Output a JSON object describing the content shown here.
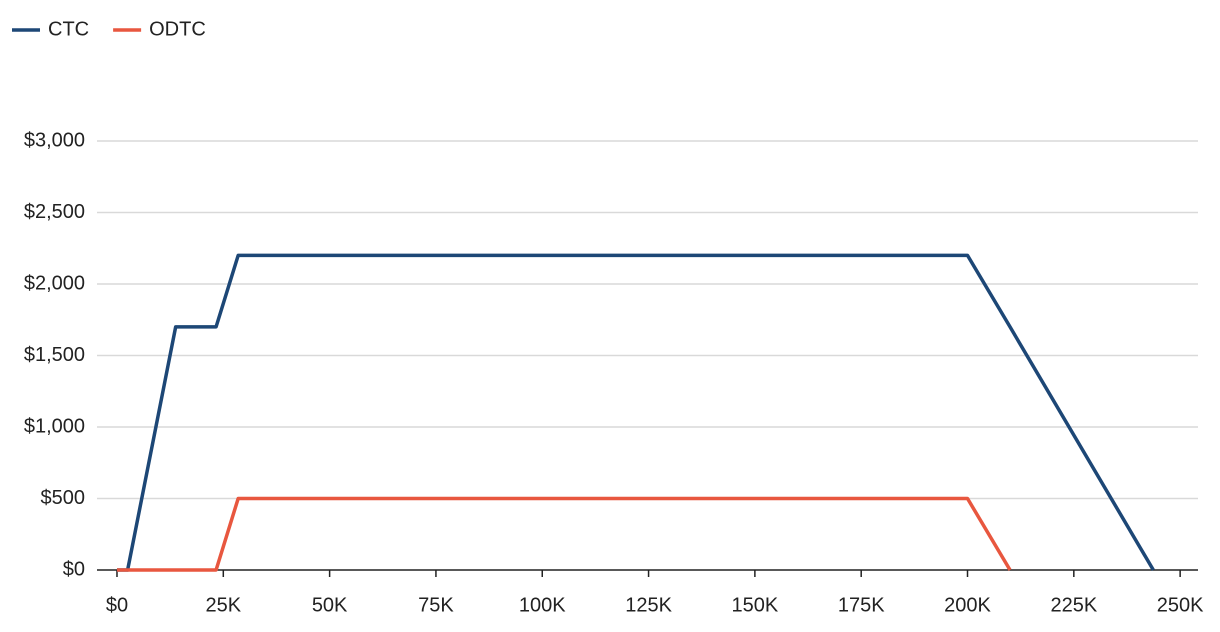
{
  "chart_data": {
    "type": "line",
    "x": [
      0,
      2500,
      13800,
      23300,
      28500,
      200000,
      210000,
      243700
    ],
    "series": [
      {
        "name": "CTC",
        "color": "#1d4776",
        "values": [
          0,
          0,
          1700,
          1700,
          2200,
          2200,
          1700,
          0
        ]
      },
      {
        "name": "ODTC",
        "color": "#e8573f",
        "values": [
          0,
          0,
          0,
          0,
          500,
          500,
          0,
          null
        ]
      }
    ],
    "xlim": [
      -4700,
      254200
    ],
    "xticks": [
      {
        "value": 0,
        "label": "$0"
      },
      {
        "value": 25000,
        "label": "25K"
      },
      {
        "value": 50000,
        "label": "50K"
      },
      {
        "value": 75000,
        "label": "75K"
      },
      {
        "value": 100000,
        "label": "100K"
      },
      {
        "value": 125000,
        "label": "125K"
      },
      {
        "value": 150000,
        "label": "150K"
      },
      {
        "value": 175000,
        "label": "175K"
      },
      {
        "value": 200000,
        "label": "200K"
      },
      {
        "value": 225000,
        "label": "225K"
      },
      {
        "value": 250000,
        "label": "250K"
      }
    ],
    "ylim": [
      0,
      3000
    ],
    "yticks": [
      {
        "value": 0,
        "label": "$0"
      },
      {
        "value": 500,
        "label": "$500"
      },
      {
        "value": 1000,
        "label": "$1,000"
      },
      {
        "value": 1500,
        "label": "$1,500"
      },
      {
        "value": 2000,
        "label": "$2,000"
      },
      {
        "value": 2500,
        "label": "$2,500"
      },
      {
        "value": 3000,
        "label": "$3,000"
      }
    ],
    "grid": true,
    "legend": "top-left"
  }
}
